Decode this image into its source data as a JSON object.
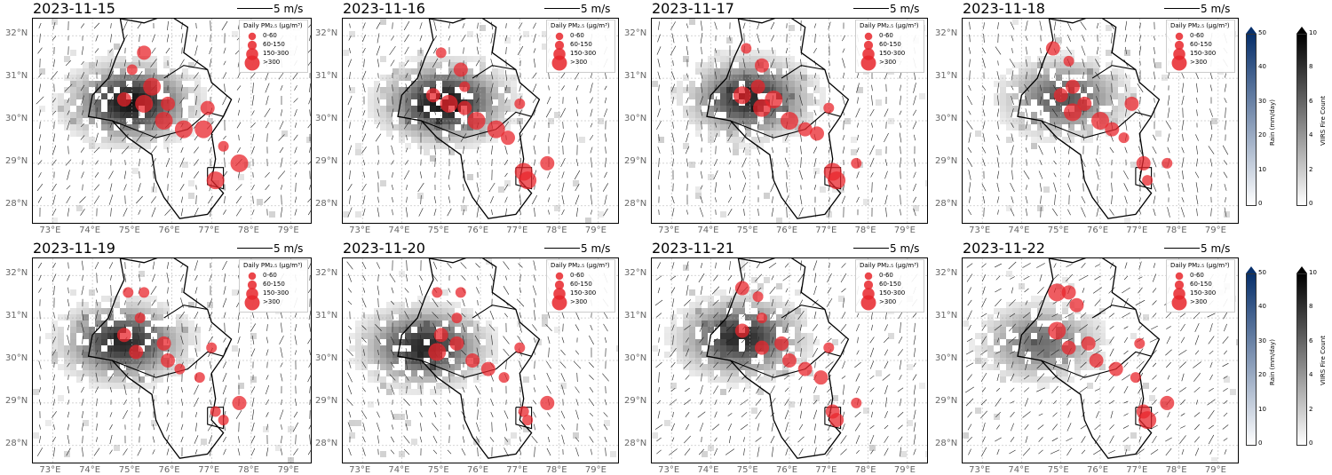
{
  "scale_text": "5 m/s",
  "legend": {
    "title": "Daily PM₂.₅ (μg/m³)",
    "entries": [
      "0-60",
      "60-150",
      "150-300",
      ">300"
    ]
  },
  "x_ticks": [
    "73°E",
    "74°E",
    "75°E",
    "76°E",
    "77°E",
    "78°E",
    "79°E"
  ],
  "y_ticks": [
    "28°N",
    "29°N",
    "30°N",
    "31°N",
    "32°N"
  ],
  "colorbars": {
    "rain": {
      "label": "Rain (mm/day)",
      "ticks": [
        "0",
        "10",
        "20",
        "30",
        "40",
        "50"
      ],
      "range": [
        0,
        50
      ],
      "color_high": "#08306b"
    },
    "fire": {
      "label": "VIIRS Fire Count",
      "ticks": [
        "0",
        "2",
        "4",
        "6",
        "8",
        "10"
      ],
      "range": [
        0,
        10
      ],
      "color_high": "#000000"
    }
  },
  "colors": {
    "pm25_marker": "#e8262c",
    "fire_high": "#000000",
    "rain_high": "#08306b"
  },
  "chart_data": [
    {
      "type": "scatter",
      "date": "2023-11-15",
      "marker_lon": [
        75.3,
        75.0,
        75.5,
        74.8,
        75.3,
        75.8,
        75.9,
        76.3,
        76.8,
        76.9,
        77.3,
        77.1,
        77.7
      ],
      "marker_lat": [
        31.6,
        31.2,
        30.8,
        30.5,
        30.4,
        30.0,
        30.4,
        29.8,
        29.8,
        30.3,
        29.4,
        28.6,
        29.0
      ],
      "marker_class": [
        2,
        1,
        3,
        2,
        3,
        3,
        2,
        3,
        3,
        2,
        1,
        3,
        3
      ],
      "fire_center": [
        74.9,
        30.5
      ],
      "fire_intensity": 1.0,
      "wind_dir": 110
    },
    {
      "type": "scatter",
      "date": "2023-11-16",
      "marker_lon": [
        75.0,
        75.5,
        75.6,
        74.8,
        75.2,
        75.6,
        75.9,
        76.4,
        76.7,
        77.0,
        77.1,
        77.2,
        77.7
      ],
      "marker_lat": [
        31.6,
        31.2,
        30.8,
        30.6,
        30.4,
        30.3,
        30.0,
        29.8,
        29.6,
        30.4,
        28.8,
        28.6,
        29.0
      ],
      "marker_class": [
        1,
        2,
        1,
        2,
        3,
        2,
        3,
        3,
        2,
        1,
        3,
        3,
        2
      ],
      "fire_center": [
        75.0,
        30.5
      ],
      "fire_intensity": 1.0,
      "wind_dir": 100
    },
    {
      "type": "scatter",
      "date": "2023-11-17",
      "marker_lon": [
        74.9,
        75.3,
        75.2,
        74.8,
        75.3,
        75.6,
        76.0,
        76.4,
        76.7,
        77.0,
        77.1,
        77.2,
        77.7
      ],
      "marker_lat": [
        31.7,
        31.3,
        30.8,
        30.6,
        30.3,
        30.5,
        30.0,
        29.8,
        29.7,
        30.3,
        28.8,
        28.6,
        29.0
      ],
      "marker_class": [
        1,
        2,
        2,
        3,
        3,
        3,
        3,
        2,
        2,
        1,
        3,
        3,
        1
      ],
      "fire_center": [
        74.9,
        30.6
      ],
      "fire_intensity": 0.9,
      "wind_dir": 95
    },
    {
      "type": "scatter",
      "date": "2023-11-18",
      "marker_lon": [
        74.8,
        75.2,
        75.3,
        75.0,
        75.3,
        75.6,
        76.0,
        76.3,
        76.6,
        76.8,
        77.1,
        77.2,
        77.7
      ],
      "marker_lat": [
        31.7,
        31.4,
        30.8,
        30.6,
        30.2,
        30.4,
        30.0,
        29.8,
        29.6,
        30.4,
        29.0,
        28.6,
        29.0
      ],
      "marker_class": [
        2,
        1,
        2,
        2,
        3,
        2,
        3,
        2,
        1,
        2,
        2,
        1,
        1
      ],
      "fire_center": [
        75.0,
        30.6
      ],
      "fire_intensity": 0.7,
      "wind_dir": 80
    },
    {
      "type": "scatter",
      "date": "2023-11-19",
      "marker_lon": [
        74.9,
        75.3,
        75.2,
        74.8,
        75.1,
        75.8,
        75.9,
        76.2,
        76.7,
        77.0,
        77.1,
        77.3,
        77.7
      ],
      "marker_lat": [
        31.6,
        31.6,
        31.0,
        30.6,
        30.2,
        30.4,
        30.0,
        29.8,
        29.6,
        30.3,
        28.8,
        28.6,
        29.0
      ],
      "marker_class": [
        1,
        1,
        1,
        2,
        2,
        2,
        2,
        1,
        1,
        1,
        1,
        1,
        2
      ],
      "fire_center": [
        74.7,
        30.5
      ],
      "fire_intensity": 0.9,
      "wind_dir": 100
    },
    {
      "type": "scatter",
      "date": "2023-11-20",
      "marker_lon": [
        74.9,
        75.5,
        75.4,
        75.0,
        74.9,
        75.4,
        75.8,
        76.2,
        76.6,
        77.0,
        77.1,
        77.2,
        77.7
      ],
      "marker_lat": [
        31.6,
        31.6,
        31.0,
        30.6,
        30.2,
        30.4,
        30.0,
        29.8,
        29.6,
        30.3,
        28.8,
        28.6,
        29.0
      ],
      "marker_class": [
        1,
        1,
        1,
        2,
        3,
        2,
        2,
        2,
        1,
        1,
        1,
        1,
        2
      ],
      "fire_center": [
        74.5,
        30.4
      ],
      "fire_intensity": 0.9,
      "wind_dir": 70
    },
    {
      "type": "scatter",
      "date": "2023-11-21",
      "marker_lon": [
        74.8,
        75.2,
        75.3,
        74.8,
        75.3,
        75.8,
        76.0,
        76.4,
        76.8,
        77.0,
        77.1,
        77.2,
        77.7
      ],
      "marker_lat": [
        31.7,
        31.5,
        31.0,
        30.7,
        30.3,
        30.4,
        30.0,
        29.8,
        29.6,
        30.3,
        28.8,
        28.6,
        29.0
      ],
      "marker_class": [
        2,
        1,
        1,
        2,
        2,
        2,
        2,
        2,
        2,
        1,
        2,
        2,
        1
      ],
      "fire_center": [
        74.7,
        30.6
      ],
      "fire_intensity": 0.9,
      "wind_dir": 120
    },
    {
      "type": "scatter",
      "date": "2023-11-22",
      "marker_lon": [
        74.9,
        75.2,
        75.4,
        74.9,
        75.2,
        75.7,
        75.9,
        76.4,
        76.9,
        77.0,
        77.1,
        77.2,
        77.7
      ],
      "marker_lat": [
        31.6,
        31.6,
        31.3,
        30.7,
        30.3,
        30.4,
        30.0,
        29.8,
        29.6,
        30.4,
        28.8,
        28.6,
        29.0
      ],
      "marker_class": [
        3,
        2,
        2,
        3,
        2,
        2,
        2,
        2,
        1,
        1,
        2,
        3,
        2
      ],
      "fire_center": [
        74.4,
        30.5
      ],
      "fire_intensity": 0.6,
      "wind_dir": 130
    }
  ]
}
